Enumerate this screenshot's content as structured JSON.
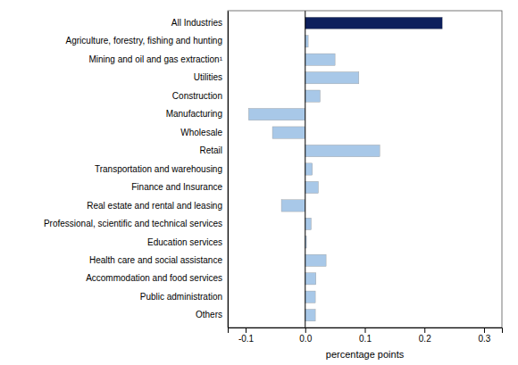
{
  "chart_data": {
    "type": "bar",
    "orientation": "horizontal",
    "categories": [
      "All Industries",
      "Agriculture, forestry, fishing and hunting",
      "Mining and oil and gas extraction¹",
      "Utilities",
      "Construction",
      "Manufacturing",
      "Wholesale",
      "Retail",
      "Transportation and warehousing",
      "Finance and Insurance",
      "Real estate and rental and leasing",
      "Professional, scientific and technical services",
      "Education services",
      "Health care and social assistance",
      "Accommodation and food services",
      "Public administration",
      "Others"
    ],
    "values": [
      0.23,
      0.005,
      0.05,
      0.09,
      0.025,
      -0.095,
      -0.055,
      0.125,
      0.012,
      0.022,
      -0.04,
      0.01,
      0.002,
      0.035,
      0.018,
      0.017,
      0.017
    ],
    "colors": [
      "#0d1f5c",
      "#a8c8e8",
      "#a8c8e8",
      "#a8c8e8",
      "#a8c8e8",
      "#a8c8e8",
      "#a8c8e8",
      "#a8c8e8",
      "#a8c8e8",
      "#a8c8e8",
      "#a8c8e8",
      "#a8c8e8",
      "#a8c8e8",
      "#a8c8e8",
      "#a8c8e8",
      "#a8c8e8",
      "#a8c8e8"
    ],
    "xlabel": "percentage points",
    "xlim": [
      -0.13,
      0.33
    ],
    "xticks": [
      -0.1,
      {
        "value": 0,
        "label": "0.0"
      },
      0.1,
      0.2,
      0.3
    ],
    "grid": false
  }
}
